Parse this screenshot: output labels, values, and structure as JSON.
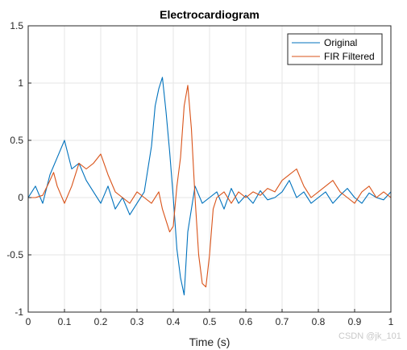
{
  "chart_data": {
    "type": "line",
    "title": "Electrocardiogram",
    "xlabel": "Time (s)",
    "ylabel": "",
    "xlim": [
      0,
      1
    ],
    "ylim": [
      -1,
      1.5
    ],
    "xticks": [
      "0",
      "0.1",
      "0.2",
      "0.3",
      "0.4",
      "0.5",
      "0.6",
      "0.7",
      "0.8",
      "0.9",
      "1"
    ],
    "yticks": [
      "-1",
      "-0.5",
      "0",
      "0.5",
      "1",
      "1.5"
    ],
    "grid": true,
    "legend_position": "top-right",
    "series": [
      {
        "name": "Original",
        "color": "#0072BD",
        "x": [
          0,
          0.02,
          0.04,
          0.06,
          0.08,
          0.1,
          0.12,
          0.14,
          0.16,
          0.18,
          0.2,
          0.22,
          0.24,
          0.26,
          0.28,
          0.3,
          0.32,
          0.34,
          0.35,
          0.36,
          0.37,
          0.38,
          0.39,
          0.4,
          0.41,
          0.42,
          0.43,
          0.44,
          0.46,
          0.48,
          0.5,
          0.52,
          0.54,
          0.56,
          0.58,
          0.6,
          0.62,
          0.64,
          0.66,
          0.68,
          0.7,
          0.72,
          0.74,
          0.76,
          0.78,
          0.8,
          0.82,
          0.84,
          0.86,
          0.88,
          0.9,
          0.92,
          0.94,
          0.96,
          0.98,
          1.0
        ],
        "y": [
          0.0,
          0.1,
          -0.05,
          0.2,
          0.35,
          0.5,
          0.25,
          0.3,
          0.15,
          0.05,
          -0.05,
          0.1,
          -0.1,
          0.0,
          -0.15,
          -0.05,
          0.05,
          0.45,
          0.8,
          0.95,
          1.05,
          0.75,
          0.4,
          0.0,
          -0.45,
          -0.7,
          -0.85,
          -0.3,
          0.1,
          -0.05,
          0.0,
          0.05,
          -0.1,
          0.08,
          -0.05,
          0.02,
          -0.05,
          0.06,
          -0.02,
          0.0,
          0.05,
          0.15,
          0.0,
          0.05,
          -0.05,
          0.0,
          0.05,
          -0.05,
          0.02,
          0.08,
          0.0,
          -0.05,
          0.04,
          0.0,
          -0.02,
          0.05
        ]
      },
      {
        "name": "FIR Filtered",
        "color": "#D95319",
        "x": [
          0,
          0.02,
          0.04,
          0.06,
          0.07,
          0.08,
          0.1,
          0.12,
          0.14,
          0.16,
          0.18,
          0.2,
          0.22,
          0.24,
          0.26,
          0.28,
          0.3,
          0.32,
          0.34,
          0.36,
          0.37,
          0.38,
          0.39,
          0.4,
          0.41,
          0.42,
          0.43,
          0.44,
          0.45,
          0.46,
          0.47,
          0.48,
          0.49,
          0.5,
          0.51,
          0.52,
          0.54,
          0.56,
          0.58,
          0.6,
          0.62,
          0.64,
          0.66,
          0.68,
          0.7,
          0.72,
          0.74,
          0.76,
          0.78,
          0.8,
          0.82,
          0.84,
          0.86,
          0.88,
          0.9,
          0.92,
          0.94,
          0.96,
          0.98,
          1.0
        ],
        "y": [
          0.0,
          0.0,
          0.02,
          0.15,
          0.22,
          0.1,
          -0.05,
          0.1,
          0.3,
          0.25,
          0.3,
          0.38,
          0.2,
          0.05,
          0.0,
          -0.05,
          0.05,
          0.0,
          -0.05,
          0.05,
          -0.1,
          -0.2,
          -0.3,
          -0.25,
          0.1,
          0.35,
          0.8,
          0.98,
          0.6,
          0.0,
          -0.5,
          -0.75,
          -0.78,
          -0.5,
          -0.1,
          0.0,
          0.05,
          -0.05,
          0.05,
          0.0,
          0.05,
          0.02,
          0.08,
          0.05,
          0.15,
          0.2,
          0.25,
          0.1,
          0.0,
          0.05,
          0.1,
          0.15,
          0.05,
          0.0,
          -0.05,
          0.05,
          0.1,
          0.0,
          0.05,
          0.0
        ]
      }
    ]
  },
  "watermark": "CSDN @jk_101"
}
